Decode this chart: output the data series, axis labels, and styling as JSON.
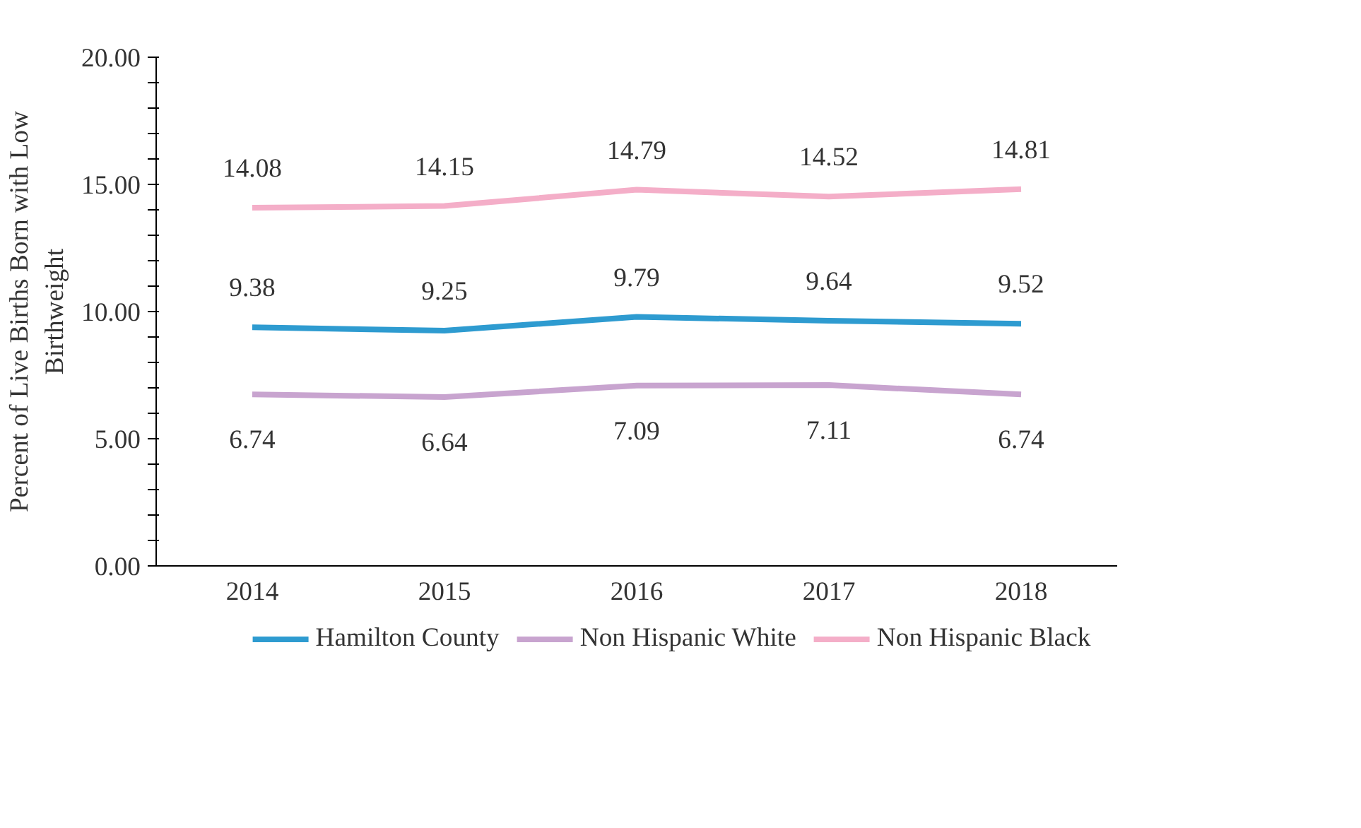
{
  "chart_data": {
    "type": "line",
    "ylabel": "Percent of Live Births Born with Low Birthweight",
    "categories": [
      "2014",
      "2015",
      "2016",
      "2017",
      "2018"
    ],
    "series": [
      {
        "name": "Hamilton County",
        "color": "#2e9bd0",
        "values": [
          9.38,
          9.25,
          9.79,
          9.64,
          9.52
        ]
      },
      {
        "name": "Non Hispanic White",
        "color": "#c8a4cf",
        "values": [
          6.74,
          6.64,
          7.09,
          7.11,
          6.74
        ]
      },
      {
        "name": "Non Hispanic Black",
        "color": "#f4aec8",
        "values": [
          14.08,
          14.15,
          14.79,
          14.52,
          14.81
        ]
      }
    ],
    "ylim": [
      0,
      20
    ],
    "yticks": [
      {
        "value": 0,
        "label": "0.00"
      },
      {
        "value": 1,
        "label": null
      },
      {
        "value": 2,
        "label": null
      },
      {
        "value": 3,
        "label": null
      },
      {
        "value": 4,
        "label": null
      },
      {
        "value": 5,
        "label": "5.00"
      },
      {
        "value": 6,
        "label": null
      },
      {
        "value": 7,
        "label": null
      },
      {
        "value": 8,
        "label": null
      },
      {
        "value": 9,
        "label": null
      },
      {
        "value": 10,
        "label": "10.00"
      },
      {
        "value": 11,
        "label": null
      },
      {
        "value": 12,
        "label": null
      },
      {
        "value": 13,
        "label": null
      },
      {
        "value": 14,
        "label": null
      },
      {
        "value": 15,
        "label": "15.00"
      },
      {
        "value": 16,
        "label": null
      },
      {
        "value": 17,
        "label": null
      },
      {
        "value": 18,
        "label": null
      },
      {
        "value": 19,
        "label": null
      },
      {
        "value": 20,
        "label": "20.00"
      }
    ],
    "data_labels": true,
    "grid": false,
    "legend": "bottom",
    "marker": "none",
    "line_style": "solid"
  }
}
